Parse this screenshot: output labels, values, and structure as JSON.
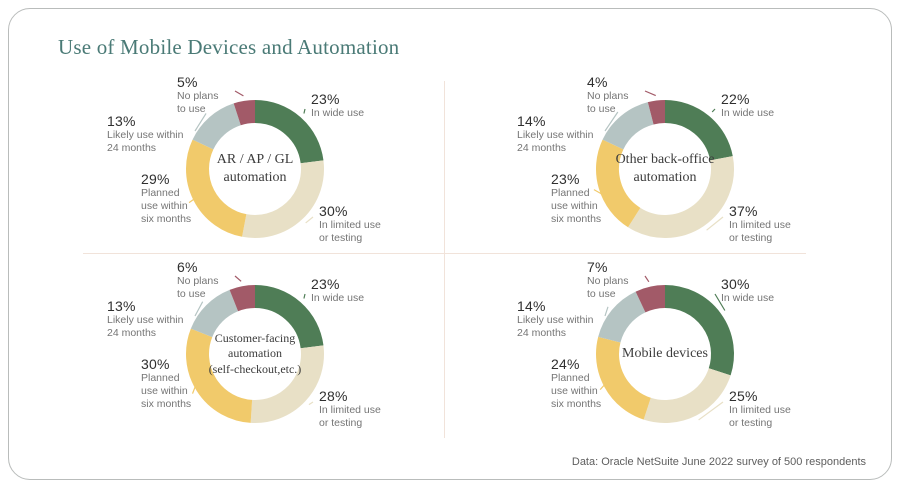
{
  "title": "Use of Mobile Devices and Automation",
  "source_note": "Data: Oracle NetSuite June 2022 survey of 500 respondents",
  "accent_colors": {
    "title_teal": "#4a7a76",
    "card_border": "#b9bcbb",
    "divider": "#f1e3da"
  },
  "chart_data": {
    "type": "pie",
    "subtype": "donut-small-multiples",
    "unit": "%",
    "start_angle_deg": 0,
    "direction": "clockwise",
    "legend_position": "callout-labels",
    "categories": [
      "In wide use",
      "In limited use or testing",
      "Planned use within six months",
      "Likely use within 24 months",
      "No plans to use"
    ],
    "colors": [
      "#4f7d56",
      "#e8e0c6",
      "#f1ca6b",
      "#b5c4c3",
      "#a25a68"
    ],
    "category_label_lines": [
      [
        "In wide use"
      ],
      [
        "In limited use",
        "or testing"
      ],
      [
        "Planned",
        "use within",
        "six months"
      ],
      [
        "Likely use within",
        "24 months"
      ],
      [
        "No plans",
        "to use"
      ]
    ],
    "charts": [
      {
        "name": "AR / AP / GL automation",
        "center_lines": [
          "AR / AP / GL",
          "automation"
        ],
        "values": [
          23,
          30,
          29,
          13,
          5
        ]
      },
      {
        "name": "Other back-office automation",
        "center_lines": [
          "Other back-office",
          "automation"
        ],
        "values": [
          22,
          37,
          23,
          14,
          4
        ]
      },
      {
        "name": "Customer-facing automation (self-checkout,etc.)",
        "center_lines": [
          "Customer-facing",
          "automation",
          "(self-checkout,etc.)"
        ],
        "values": [
          23,
          28,
          30,
          13,
          6
        ]
      },
      {
        "name": "Mobile devices",
        "center_lines": [
          "Mobile devices"
        ],
        "values": [
          30,
          25,
          24,
          14,
          7
        ]
      }
    ]
  }
}
